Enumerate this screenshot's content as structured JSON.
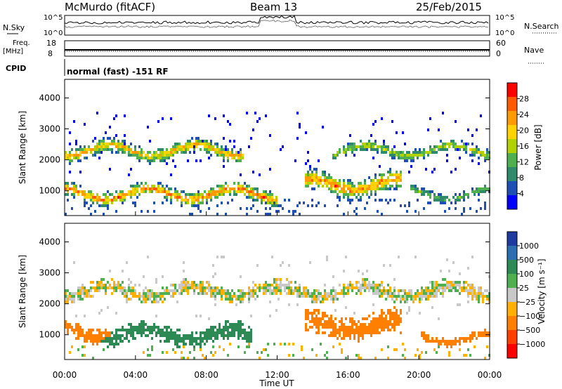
{
  "header": {
    "station": "McMurdo (fitACF)",
    "beam": "Beam 13",
    "date": "25/Feb/2015"
  },
  "noise_panel": {
    "left_label": "N.Sky",
    "right_label": "N.Search",
    "ticks_top": "10^5",
    "ticks_bottom": "10^0"
  },
  "freq_panel": {
    "left_label_1": "Freq.",
    "left_label_2": "[MHz]",
    "left_ticks": [
      "18",
      "8"
    ],
    "right_label": "Nave",
    "right_ticks": [
      "60",
      "0"
    ]
  },
  "cpid": {
    "label": "CPID",
    "text": "normal (fast) -151 RF"
  },
  "power_panel": {
    "ylabel": "Slant Range [km]",
    "colorbar_label": "Power [dB]",
    "colorbar_ticks": [
      "28",
      "24",
      "20",
      "16",
      "12",
      "8",
      "4"
    ],
    "colorbar_colors": [
      "#ff0000",
      "#ff5a00",
      "#ff9a00",
      "#ffd200",
      "#b2d200",
      "#4fb04f",
      "#2e8a6a",
      "#1e4fb4",
      "#0000ff"
    ]
  },
  "velocity_panel": {
    "ylabel": "Slant Range [km]",
    "colorbar_label": "Velocity [m s⁻¹]",
    "colorbar_ticks": [
      "1000",
      "500",
      "100",
      "25",
      "−25",
      "−100",
      "−500",
      "−1000"
    ],
    "colorbar_colors": [
      "#1e3ca0",
      "#2c6fb0",
      "#2e8a55",
      "#4fb04f",
      "#c8c8c8",
      "#ffb000",
      "#ff8000",
      "#ff4000",
      "#ff0000"
    ]
  },
  "xaxis": {
    "label": "Time UT",
    "ticks": [
      "00:00",
      "04:00",
      "08:00",
      "12:00",
      "16:00",
      "20:00",
      "00:00"
    ]
  },
  "chart_data": [
    {
      "type": "heatmap",
      "title": "Power",
      "xlabel": "Time UT",
      "ylabel": "Slant Range [km]",
      "xlim": [
        0,
        24
      ],
      "ylim": [
        200,
        4600
      ],
      "yticks": [
        1000,
        2000,
        3000,
        4000
      ],
      "colorbar": {
        "label": "Power [dB]",
        "range": [
          0,
          32
        ],
        "ticks": [
          4,
          8,
          12,
          16,
          20,
          24,
          28
        ]
      },
      "echo_bands": [
        {
          "t_start": 0.0,
          "t_end": 10.0,
          "range_center_km": 2300,
          "range_width_km": 500,
          "peak_db": 26
        },
        {
          "t_start": 0.0,
          "t_end": 12.0,
          "range_center_km": 900,
          "range_width_km": 500,
          "peak_db": 30
        },
        {
          "t_start": 13.5,
          "t_end": 19.0,
          "range_center_km": 1200,
          "range_width_km": 700,
          "peak_db": 30
        },
        {
          "t_start": 15.0,
          "t_end": 24.0,
          "range_center_km": 2300,
          "range_width_km": 400,
          "peak_db": 20
        },
        {
          "t_start": 19.5,
          "t_end": 24.0,
          "range_center_km": 900,
          "range_width_km": 300,
          "peak_db": 16
        }
      ]
    },
    {
      "type": "heatmap",
      "title": "Velocity",
      "xlabel": "Time UT",
      "ylabel": "Slant Range [km]",
      "xlim": [
        0,
        24
      ],
      "ylim": [
        200,
        4600
      ],
      "yticks": [
        1000,
        2000,
        3000,
        4000
      ],
      "colorbar": {
        "label": "Velocity [m s⁻¹]",
        "range": [
          -1000,
          1000
        ],
        "ticks": [
          1000,
          500,
          100,
          25,
          -25,
          -100,
          -500,
          -1000
        ]
      },
      "echo_bands": [
        {
          "t_start": 0.0,
          "t_end": 24.0,
          "range_center_km": 2400,
          "range_width_km": 500,
          "velocity_ms": 0
        },
        {
          "t_start": 2.0,
          "t_end": 10.5,
          "range_center_km": 1000,
          "range_width_km": 600,
          "velocity_ms": 300
        },
        {
          "t_start": 0.0,
          "t_end": 2.5,
          "range_center_km": 1100,
          "range_width_km": 500,
          "velocity_ms": -300
        },
        {
          "t_start": 13.5,
          "t_end": 19.0,
          "range_center_km": 1300,
          "range_width_km": 800,
          "velocity_ms": -300
        },
        {
          "t_start": 20.0,
          "t_end": 24.0,
          "range_center_km": 900,
          "range_width_km": 300,
          "velocity_ms": -200
        }
      ]
    }
  ]
}
